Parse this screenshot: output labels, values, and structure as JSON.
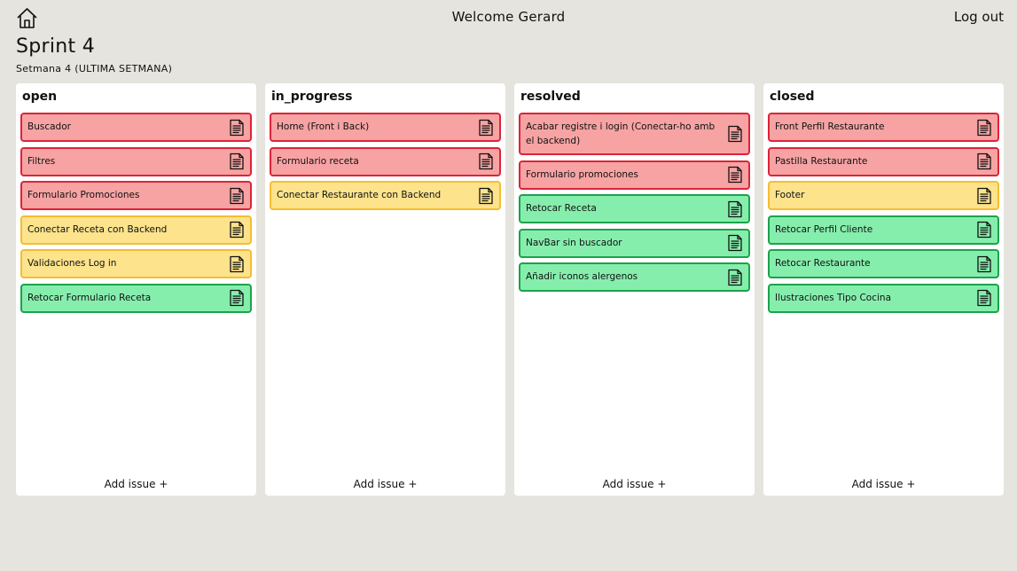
{
  "header": {
    "home_icon": "home-icon",
    "welcome": "Welcome Gerard",
    "logout": "Log out"
  },
  "sprint": {
    "title": "Sprint 4",
    "subtitle": "Setmana 4 (ULTIMA SETMANA)"
  },
  "colors": {
    "background": "#e5e4df",
    "red_fill": "#f7a3a3",
    "red_border": "#dc2438",
    "yellow_fill": "#fce38c",
    "yellow_border": "#f4bd33",
    "green_fill": "#86eead",
    "green_border": "#1ca24c"
  },
  "card_icon": "document-icon",
  "columns": [
    {
      "title": "open",
      "add_label": "Add issue +",
      "cards": [
        {
          "label": "Buscador",
          "color": "red"
        },
        {
          "label": "Filtres",
          "color": "red"
        },
        {
          "label": "Formulario Promociones",
          "color": "red"
        },
        {
          "label": "Conectar Receta con Backend",
          "color": "yellow"
        },
        {
          "label": "Validaciones Log in",
          "color": "yellow"
        },
        {
          "label": "Retocar Formulario Receta",
          "color": "green"
        }
      ]
    },
    {
      "title": "in_progress",
      "add_label": "Add issue +",
      "cards": [
        {
          "label": "Home (Front i Back)",
          "color": "red"
        },
        {
          "label": "Formulario receta",
          "color": "red"
        },
        {
          "label": "Conectar Restaurante con Backend",
          "color": "yellow"
        }
      ]
    },
    {
      "title": "resolved",
      "add_label": "Add issue +",
      "cards": [
        {
          "label": "Acabar registre i login (Conectar-ho amb el backend)",
          "color": "red"
        },
        {
          "label": "Formulario promociones",
          "color": "red"
        },
        {
          "label": "Retocar Receta",
          "color": "green"
        },
        {
          "label": "NavBar sin buscador",
          "color": "green"
        },
        {
          "label": "Añadir iconos alergenos",
          "color": "green"
        }
      ]
    },
    {
      "title": "closed",
      "add_label": "Add issue +",
      "cards": [
        {
          "label": "Front Perfil Restaurante",
          "color": "red"
        },
        {
          "label": "Pastilla Restaurante",
          "color": "red"
        },
        {
          "label": "Footer",
          "color": "yellow"
        },
        {
          "label": "Retocar Perfil Cliente",
          "color": "green"
        },
        {
          "label": "Retocar Restaurante",
          "color": "green"
        },
        {
          "label": "Ilustraciones Tipo Cocina",
          "color": "green"
        }
      ]
    }
  ]
}
